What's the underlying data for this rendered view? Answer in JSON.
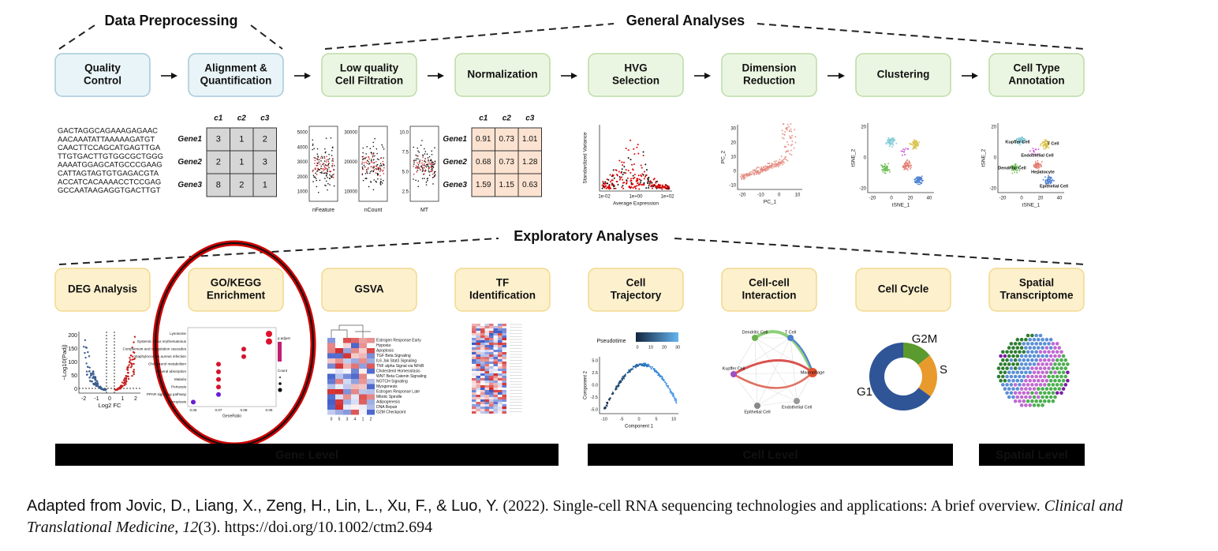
{
  "sections": {
    "preprocessing": "Data Preprocessing",
    "general": "General Analyses",
    "exploratory": "Exploratory Analyses"
  },
  "top_steps": [
    [
      "Quality",
      "Control"
    ],
    [
      "Alignment &",
      "Quantification"
    ],
    [
      "Low quality",
      "Cell Filtration"
    ],
    [
      "Normalization"
    ],
    [
      "HVG",
      "Selection"
    ],
    [
      "Dimension",
      "Reduction"
    ],
    [
      "Clustering"
    ],
    [
      "Cell Type",
      "Annotation"
    ]
  ],
  "bottom_steps": [
    [
      "DEG Analysis"
    ],
    [
      "GO/KEGG",
      "Enrichment"
    ],
    [
      "GSVA"
    ],
    [
      "TF",
      "Identification"
    ],
    [
      "Cell",
      "Trajectory"
    ],
    [
      "Cell-cell",
      "Interaction"
    ],
    [
      "Cell Cycle"
    ],
    [
      "Spatial",
      "Transcriptome"
    ]
  ],
  "sequences": [
    "GACTAGGCAGAAAGAGAAC",
    "AACAAATATTAAAAAGATGT",
    "CAACTTCCAGCATGAGTTGA",
    "TTGTGACTTGTGGCGCTGGG",
    "AAAATGGAGCATGCCCGAAG",
    "CATTAGTAGTGTGAGACGTA",
    "ACCATCACAAAACCTCCGAG",
    "GCCAATAAGAGGTGACTTGT"
  ],
  "raw_table": {
    "columns": [
      "c1",
      "c2",
      "c3"
    ],
    "rows": [
      {
        "gene": "Gene1",
        "values": [
          3,
          1,
          2
        ]
      },
      {
        "gene": "Gene2",
        "values": [
          2,
          1,
          3
        ]
      },
      {
        "gene": "Gene3",
        "values": [
          8,
          2,
          1
        ]
      }
    ]
  },
  "violin": {
    "panels": [
      {
        "label": "nFeature",
        "ticks": [
          "5000",
          "4000",
          "3000",
          "2000",
          "1000"
        ]
      },
      {
        "label": "nCount",
        "ticks": [
          "30000",
          "20000",
          "10000"
        ]
      },
      {
        "label": "MT",
        "ticks": [
          "10.0",
          "7.5",
          "5.0",
          "2.5"
        ]
      }
    ]
  },
  "norm_table": {
    "columns": [
      "c1",
      "c2",
      "c3"
    ],
    "rows": [
      {
        "gene": "Gene1",
        "values": [
          0.91,
          0.73,
          1.01
        ]
      },
      {
        "gene": "Gene2",
        "values": [
          0.68,
          0.73,
          1.28
        ]
      },
      {
        "gene": "Gene3",
        "values": [
          1.59,
          1.15,
          0.63
        ]
      }
    ]
  },
  "hvg": {
    "x_label": "Average Expression",
    "y_label": "Standardized Variance",
    "x_ticks": [
      "1e-02",
      "1e+00",
      "1e+02"
    ]
  },
  "pca": {
    "x_label": "PC_1",
    "y_label": "PC_2",
    "x_ticks": [
      "-20",
      "-10",
      "0",
      "10"
    ],
    "y_ticks": [
      "30",
      "20",
      "10",
      "0",
      "-10"
    ]
  },
  "tsne": {
    "x_label": "tSNE_1",
    "y_label": "tSNE_2",
    "x_ticks": [
      "-20",
      "0",
      "20",
      "40"
    ],
    "y_ticks": [
      "20",
      "0",
      "-20"
    ]
  },
  "annotation": {
    "x_label": "tSNE_1",
    "y_label": "tSNE_2",
    "x_ticks": [
      "-20",
      "0",
      "20",
      "40"
    ],
    "y_ticks": [
      "20",
      "0",
      "-20"
    ],
    "cells": [
      "Kupffer Cell",
      "T Cell",
      "Endothelial Cell",
      "Dendritic Cell",
      "Hepatocyte",
      "Epithelial Cell"
    ]
  },
  "volcano": {
    "x_label": "Log2 FC",
    "y_label": "−Log10(Padj)",
    "x_ticks": [
      "-2",
      "-1",
      "0",
      "1",
      "2"
    ],
    "y_ticks": [
      "200",
      "150",
      "100",
      "50",
      "0"
    ]
  },
  "go": {
    "terms": [
      "Lysosome",
      "Systemic lupus erythematosus",
      "Complement and coagulation cascades",
      "Staphylococcus aureus infection",
      "Cholesterol metabolism",
      "Mineral absorption",
      "Malaria",
      "Pertussis",
      "PPAR signaling pathway",
      "Ferroptosis"
    ],
    "x_label": "GeneRatio",
    "x_ticks": [
      "0.06",
      "0.07",
      "0.08",
      "0.09"
    ],
    "legend_color": "p.adjust",
    "legend_size": "Count"
  },
  "gsva": {
    "terms": [
      "Estrogen Response Early",
      "Hypoxia",
      "Apoptosis",
      "TGF Beta Signaling",
      "IL6 Jak Stat3 Signaling",
      "TNF alpha Signal via NFkB",
      "Cholesterol Homeostasis",
      "WNT Beta Catenin Signaling",
      "NOTCH Signaling",
      "Myogenesis",
      "Estrogen Response Late",
      "Mitotic Spindle",
      "Adipogenesis",
      "DNA Repair",
      "G2M Checkpoint"
    ],
    "x_ticks": [
      "0",
      "5",
      "3",
      "4",
      "1",
      "2"
    ]
  },
  "trajectory": {
    "legend": "Pseudotime",
    "legend_ticks": [
      "0",
      "10",
      "20",
      "30"
    ],
    "x_label": "Component 1",
    "y_label": "Component 2",
    "x_ticks": [
      "-10",
      "-5",
      "0",
      "5",
      "10"
    ],
    "y_ticks": [
      "5.0",
      "2.5",
      "0.0",
      "-2.5",
      "-5.0"
    ]
  },
  "interaction": {
    "cells": [
      "Dendritic Cell",
      "T Cell",
      "Macrophage",
      "Kupffer Cell",
      "Epithelial Cell",
      "Endothelial Cell"
    ]
  },
  "cell_cycle": {
    "labels": [
      "G1",
      "G2M",
      "S"
    ]
  },
  "levels": [
    "Gene Level",
    "Cell Level",
    "Spatial Level"
  ],
  "citation": {
    "authors": "Adapted from Jovic, D., Liang, X., Zeng, H., Lin, L., Xu, F., & Luo, Y.",
    "rest": " (2022). Single-cell RNA sequencing technologies and applications: A brief overview. ",
    "journal": "Clinical and Translational Medicine",
    "sep": ", ",
    "volume": "12",
    "issue_doi": "(3). https://doi.org/10.1002/ctm2.694"
  }
}
